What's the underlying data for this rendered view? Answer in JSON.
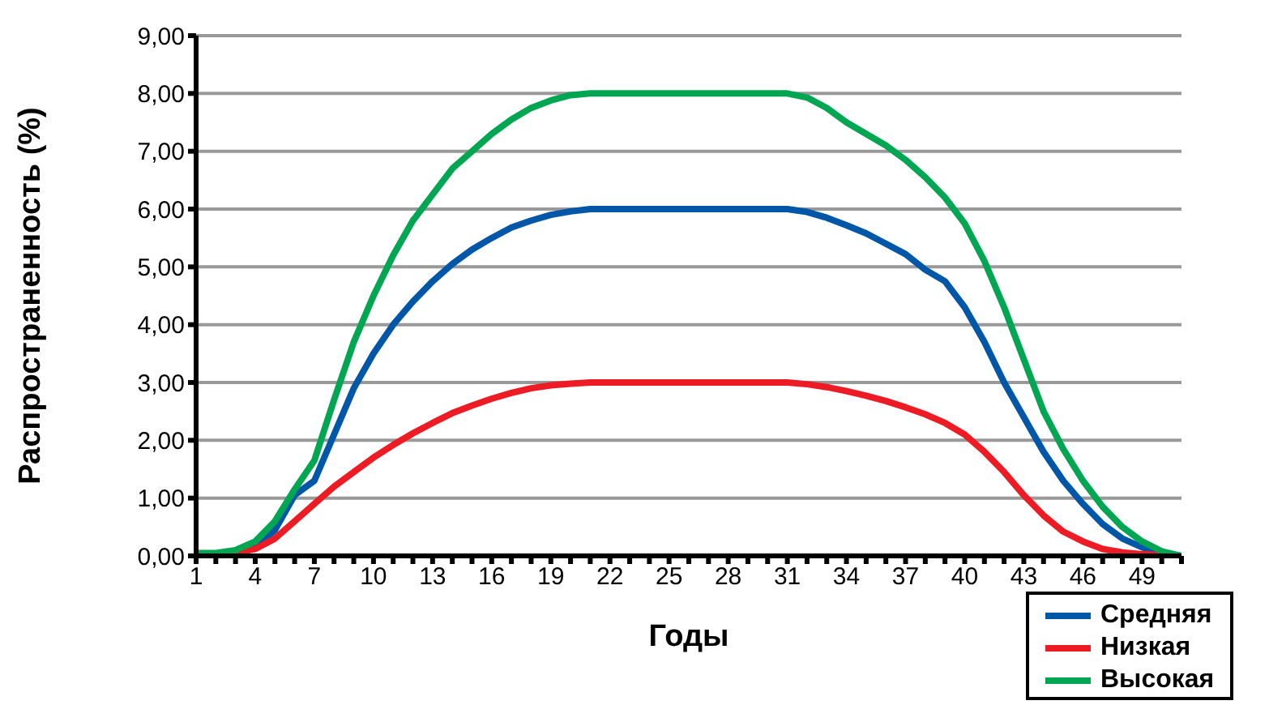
{
  "chart_data": {
    "type": "line",
    "xlabel": "Годы",
    "ylabel": "Распространенность (%)",
    "categories": [
      "1",
      null,
      null,
      "4",
      null,
      null,
      "7",
      null,
      null,
      "10",
      null,
      null,
      "13",
      null,
      null,
      "16",
      null,
      null,
      "19",
      null,
      null,
      "22",
      null,
      null,
      "25",
      null,
      null,
      "28",
      null,
      null,
      "31",
      null,
      null,
      "34",
      null,
      null,
      "37",
      null,
      null,
      "40",
      null,
      null,
      "43",
      null,
      null,
      "46",
      null,
      null,
      "49",
      null,
      null
    ],
    "series": [
      {
        "name": "Средняя",
        "color": "#0057a8",
        "values": [
          null,
          null,
          0.07,
          0.15,
          0.45,
          1.05,
          1.3,
          2.1,
          2.9,
          3.5,
          4.0,
          4.4,
          4.75,
          5.05,
          5.3,
          5.5,
          5.68,
          5.8,
          5.9,
          5.96,
          6,
          6,
          6,
          6,
          6,
          6,
          6,
          6,
          6,
          6,
          6,
          5.95,
          5.85,
          5.72,
          5.58,
          5.4,
          5.22,
          4.95,
          4.75,
          4.3,
          3.7,
          3.0,
          2.4,
          1.8,
          1.3,
          0.9,
          0.55,
          0.3,
          0.15,
          0.05,
          0
        ]
      },
      {
        "name": "Низкая",
        "color": "#ed1c24",
        "values": [
          null,
          null,
          0.05,
          0.12,
          0.3,
          0.6,
          0.9,
          1.2,
          1.45,
          1.7,
          1.92,
          2.12,
          2.3,
          2.47,
          2.6,
          2.72,
          2.82,
          2.9,
          2.95,
          2.98,
          3,
          3,
          3,
          3,
          3,
          3,
          3,
          3,
          3,
          3,
          3,
          2.97,
          2.92,
          2.85,
          2.77,
          2.68,
          2.57,
          2.45,
          2.3,
          2.1,
          1.8,
          1.45,
          1.05,
          0.7,
          0.42,
          0.25,
          0.12,
          0.06,
          0.03,
          0.01,
          0
        ]
      },
      {
        "name": "Высокая",
        "color": "#00a651",
        "values": [
          0.05,
          0.05,
          0.1,
          0.25,
          0.6,
          1.15,
          1.65,
          2.7,
          3.7,
          4.5,
          5.2,
          5.8,
          6.25,
          6.7,
          7.0,
          7.3,
          7.55,
          7.75,
          7.88,
          7.97,
          8,
          8,
          8,
          8,
          8,
          8,
          8,
          8,
          8,
          8,
          8,
          7.93,
          7.75,
          7.5,
          7.3,
          7.1,
          6.85,
          6.55,
          6.2,
          5.75,
          5.1,
          4.3,
          3.4,
          2.5,
          1.85,
          1.3,
          0.85,
          0.5,
          0.25,
          0.08,
          0
        ]
      }
    ],
    "ylim": [
      0,
      9
    ],
    "yticks": [
      {
        "value": 0,
        "label": "0,00"
      },
      {
        "value": 1,
        "label": "1,00"
      },
      {
        "value": 2,
        "label": "2,00"
      },
      {
        "value": 3,
        "label": "3,00"
      },
      {
        "value": 4,
        "label": "4,00"
      },
      {
        "value": 5,
        "label": "5,00"
      },
      {
        "value": 6,
        "label": "6,00"
      },
      {
        "value": 7,
        "label": "7,00"
      },
      {
        "value": 8,
        "label": "8,00"
      },
      {
        "value": 9,
        "label": "9,00"
      }
    ],
    "grid": "y",
    "legend": "bottom right",
    "marker": "none",
    "line_style": "solid"
  }
}
